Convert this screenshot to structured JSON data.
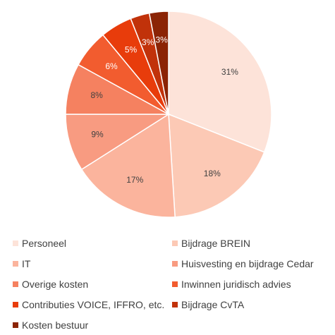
{
  "chart_data": {
    "type": "pie",
    "title": "",
    "slices": [
      {
        "label": "Personeel",
        "value": 31,
        "value_label": "31%",
        "color": "#FDE3D9",
        "label_color": "#404040"
      },
      {
        "label": "Bijdrage BREIN",
        "value": 18,
        "value_label": "18%",
        "color": "#FCC9B5",
        "label_color": "#404040"
      },
      {
        "label": "IT",
        "value": 17,
        "value_label": "17%",
        "color": "#FBB49D",
        "label_color": "#404040"
      },
      {
        "label": "Huisvesting en bijdrage Cedar",
        "value": 9,
        "value_label": "9%",
        "color": "#F89B81",
        "label_color": "#404040"
      },
      {
        "label": "Overige kosten",
        "value": 8,
        "value_label": "8%",
        "color": "#F58160",
        "label_color": "#404040"
      },
      {
        "label": "Inwinnen juridisch advies",
        "value": 6,
        "value_label": "6%",
        "color": "#F25C2F",
        "label_color": "#ffffff"
      },
      {
        "label": "Contributies VOICE, IFFRO, etc.",
        "value": 5,
        "value_label": "5%",
        "color": "#E83C0B",
        "label_color": "#ffffff"
      },
      {
        "label": "Bijdrage CvTA",
        "value": 3,
        "value_label": "3%",
        "color": "#C1320A",
        "label_color": "#ffffff"
      },
      {
        "label": "Kosten bestuur",
        "value": 3,
        "value_label": "3%",
        "color": "#8B2405",
        "label_color": "#ffffff"
      }
    ],
    "legend_position": "bottom",
    "legend_columns": 2
  }
}
